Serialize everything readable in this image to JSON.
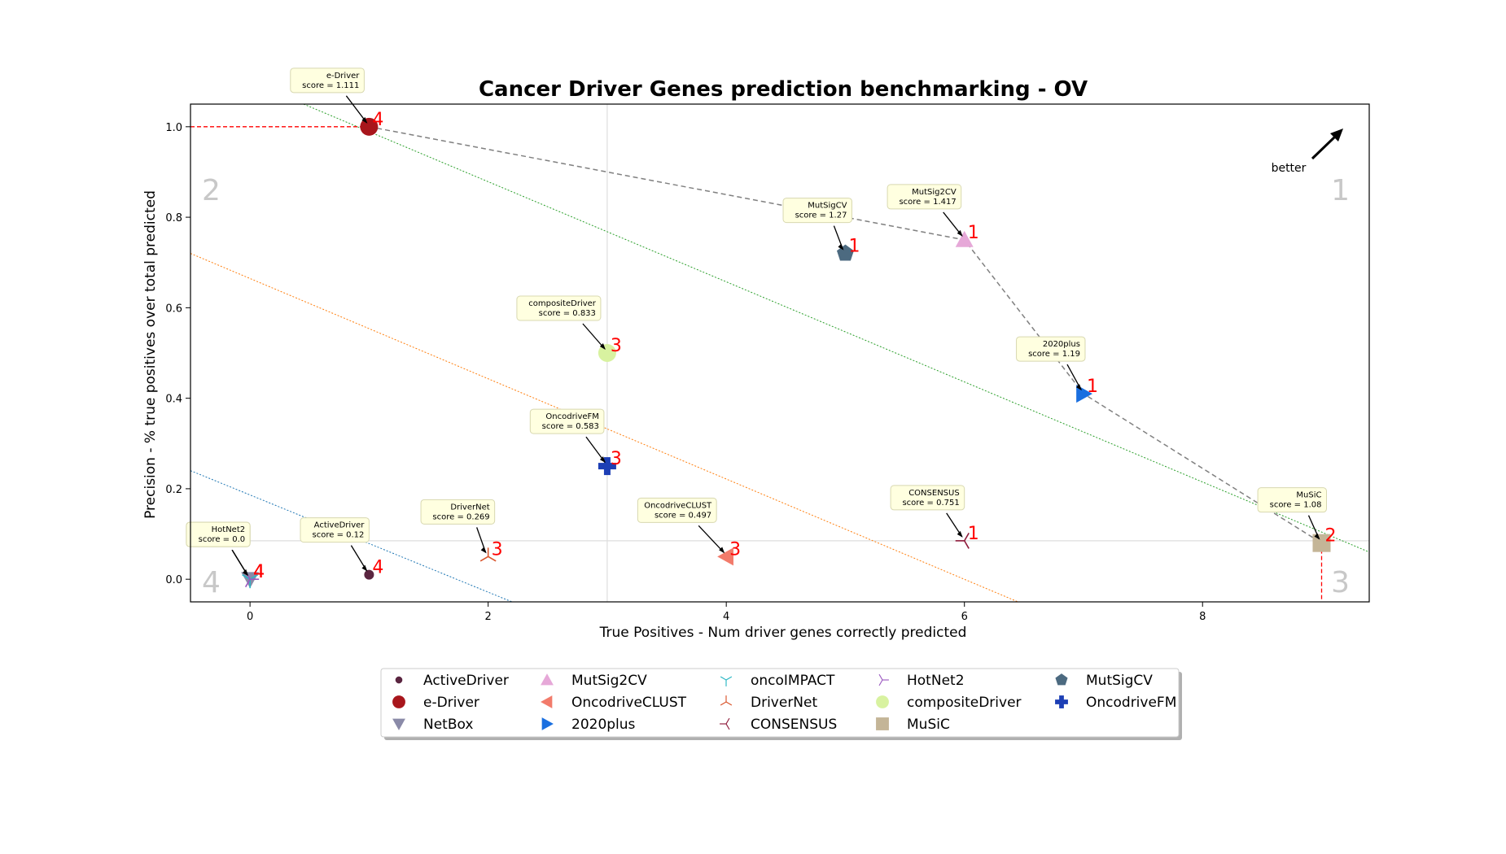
{
  "chart_data": {
    "type": "scatter",
    "title": "Cancer Driver Genes prediction benchmarking - OV",
    "xlabel": "True Positives - Num driver genes correctly predicted",
    "ylabel": "Precision - % true positives over total predicted",
    "xlim": [
      -0.5,
      9.4
    ],
    "ylim": [
      -0.05,
      1.05
    ],
    "xticks": [
      0,
      2,
      4,
      6,
      8
    ],
    "yticks": [
      0.0,
      0.2,
      0.4,
      0.6,
      0.8,
      1.0
    ],
    "grid": false,
    "mean_x": 3,
    "mean_y": 0.085,
    "better_label": "better",
    "quadrant_labels": [
      "1",
      "2",
      "3",
      "4"
    ],
    "points": [
      {
        "name": "ActiveDriver",
        "x": 1,
        "y": 0.01,
        "score": "score = 0.12",
        "rank": "4",
        "marker": "circle-small",
        "color": "#5a2540"
      },
      {
        "name": "e-Driver",
        "x": 1,
        "y": 1.0,
        "score": "score = 1.111",
        "rank": "4",
        "marker": "circle",
        "color": "#a8161c"
      },
      {
        "name": "NetBox",
        "x": 0,
        "y": 0.0,
        "score": "score = 0.0",
        "rank": "4",
        "marker": "triangle-down",
        "color": "#8a8aa8"
      },
      {
        "name": "MutSig2CV",
        "x": 6,
        "y": 0.75,
        "score": "score = 1.417",
        "rank": "1",
        "marker": "triangle-up",
        "color": "#e6a8d8"
      },
      {
        "name": "OncodriveCLUST",
        "x": 4,
        "y": 0.05,
        "score": "score = 0.497",
        "rank": "3",
        "marker": "triangle-left",
        "color": "#f27b6b"
      },
      {
        "name": "2020plus",
        "x": 7,
        "y": 0.41,
        "score": "score = 1.19",
        "rank": "1",
        "marker": "triangle-right",
        "color": "#1a6fe0"
      },
      {
        "name": "oncoIMPACT",
        "x": 0,
        "y": 0.0,
        "score": "score = 0.0",
        "rank": "4",
        "marker": "tri-down",
        "color": "#2bb7c4"
      },
      {
        "name": "DriverNet",
        "x": 2,
        "y": 0.05,
        "score": "score = 0.269",
        "rank": "3",
        "marker": "tri-up",
        "color": "#d9542b"
      },
      {
        "name": "CONSENSUS",
        "x": 6,
        "y": 0.085,
        "score": "score = 0.751",
        "rank": "1",
        "marker": "tri-left",
        "color": "#8e1a3a"
      },
      {
        "name": "HotNet2",
        "x": 0,
        "y": 0.0,
        "score": "score = 0.0",
        "rank": "4",
        "marker": "tri-right",
        "color": "#9b59c0"
      },
      {
        "name": "compositeDriver",
        "x": 3,
        "y": 0.5,
        "score": "score = 0.833",
        "rank": "3",
        "marker": "circle",
        "color": "#d8f2a0"
      },
      {
        "name": "MuSiC",
        "x": 9,
        "y": 0.08,
        "score": "score = 1.08",
        "rank": "2",
        "marker": "square",
        "color": "#c4b597"
      },
      {
        "name": "MutSigCV",
        "x": 5,
        "y": 0.72,
        "score": "score = 1.27",
        "rank": "1",
        "marker": "pentagon",
        "color": "#4c6a80"
      },
      {
        "name": "OncodriveFM",
        "x": 3,
        "y": 0.25,
        "score": "score = 0.583",
        "rank": "3",
        "marker": "plus",
        "color": "#1d3fb5"
      }
    ],
    "pareto_front": [
      [
        1,
        1.0
      ],
      [
        6,
        0.75
      ],
      [
        7,
        0.41
      ],
      [
        9,
        0.08
      ]
    ],
    "iso_lines": [
      {
        "color": "#2ca02c",
        "points": [
          [
            0.45,
            1.05
          ],
          [
            9.4,
            0.06
          ]
        ]
      },
      {
        "color": "#ff7f0e",
        "points": [
          [
            -0.5,
            0.72
          ],
          [
            6.45,
            -0.05
          ]
        ]
      },
      {
        "color": "#1f77b4",
        "points": [
          [
            -0.5,
            0.24
          ],
          [
            2.2,
            -0.05
          ]
        ]
      }
    ],
    "legend": {
      "position": "below",
      "columns": [
        [
          "ActiveDriver",
          "e-Driver",
          "NetBox"
        ],
        [
          "MutSig2CV",
          "OncodriveCLUST",
          "2020plus"
        ],
        [
          "oncoIMPACT",
          "DriverNet",
          "CONSENSUS"
        ],
        [
          "HotNet2",
          "compositeDriver",
          "MuSiC"
        ],
        [
          "MutSigCV",
          "OncodriveFM"
        ]
      ]
    }
  }
}
